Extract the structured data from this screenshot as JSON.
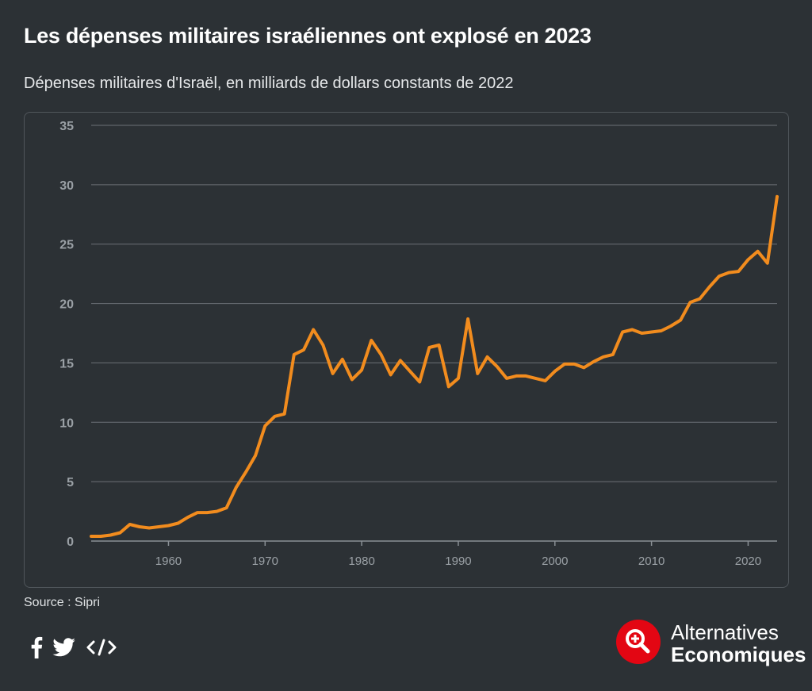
{
  "header": {
    "title": "Les dépenses militaires israéliennes ont explosé en 2023",
    "subtitle": "Dépenses militaires d'Israël, en milliards de dollars constants de 2022"
  },
  "footer": {
    "source": "Source : Sipri",
    "share_icons": [
      "facebook-icon",
      "twitter-icon",
      "embed-code-icon"
    ]
  },
  "brand": {
    "line1": "Alternatives",
    "line2": "Economiques",
    "logo_icon": "magnifier-plus-icon",
    "logo_color": "#e30613"
  },
  "colors": {
    "background": "#2c3135",
    "line": "#f28c1e",
    "grid": "#6b7176",
    "tick_label": "#9aa0a5"
  },
  "chart_data": {
    "type": "line",
    "title": "Les dépenses militaires israéliennes ont explosé en 2023",
    "subtitle": "Dépenses militaires d'Israël, en milliards de dollars constants de 2022",
    "xlabel": "",
    "ylabel": "",
    "xlim": [
      1952,
      2023
    ],
    "ylim": [
      0,
      35
    ],
    "yticks": [
      0,
      5,
      10,
      15,
      20,
      25,
      30,
      35
    ],
    "xticks": [
      1960,
      1970,
      1980,
      1990,
      2000,
      2010,
      2020
    ],
    "grid": "horizontal",
    "legend": "none",
    "series": [
      {
        "x": [
          1952,
          1953,
          1954,
          1955,
          1956,
          1957,
          1958,
          1959,
          1960,
          1961,
          1962,
          1963,
          1964,
          1965,
          1966,
          1967,
          1968,
          1969,
          1970,
          1971,
          1972,
          1973,
          1974,
          1975,
          1976,
          1977,
          1978,
          1979,
          1980,
          1981,
          1982,
          1983,
          1984,
          1985,
          1986,
          1987,
          1988,
          1989,
          1990,
          1991,
          1992,
          1993,
          1994,
          1995,
          1996,
          1997,
          1998,
          1999,
          2000,
          2001,
          2002,
          2003,
          2004,
          2005,
          2006,
          2007,
          2008,
          2009,
          2010,
          2011,
          2012,
          2013,
          2014,
          2015,
          2016,
          2017,
          2018,
          2019,
          2020,
          2021,
          2022,
          2023
        ],
        "values": [
          0.4,
          0.4,
          0.5,
          0.7,
          1.4,
          1.2,
          1.1,
          1.2,
          1.3,
          1.5,
          2.0,
          2.4,
          2.4,
          2.5,
          2.8,
          4.5,
          5.8,
          7.2,
          9.7,
          10.5,
          10.7,
          15.7,
          16.1,
          17.8,
          16.5,
          14.1,
          15.3,
          13.6,
          14.4,
          16.9,
          15.7,
          14.0,
          15.2,
          14.3,
          13.4,
          16.3,
          16.5,
          13.0,
          13.7,
          18.7,
          14.1,
          15.5,
          14.7,
          13.7,
          13.9,
          13.9,
          13.7,
          13.5,
          14.3,
          14.9,
          14.9,
          14.6,
          15.1,
          15.5,
          15.7,
          17.6,
          17.8,
          17.5,
          17.6,
          17.7,
          18.1,
          18.6,
          20.1,
          20.4,
          21.4,
          22.3,
          22.6,
          22.7,
          23.7,
          24.4,
          23.4,
          29.0
        ]
      }
    ]
  }
}
